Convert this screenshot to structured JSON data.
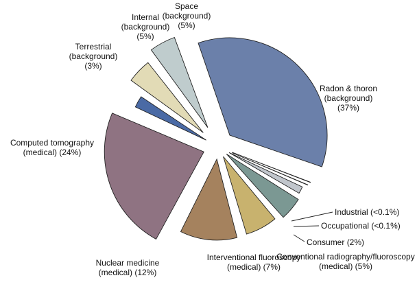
{
  "chart_data": {
    "type": "pie",
    "title": "",
    "exploded": true,
    "slices": [
      {
        "name": "Radon & thoron (background)",
        "value": 37,
        "color": "#6b80aa",
        "label_lines": [
          "Radon & thoron",
          "(background)",
          "(37%)"
        ]
      },
      {
        "name": "Industrial",
        "value": 0.1,
        "color": "#e9e9e9",
        "label_lines": [
          "Industrial (<0.1%)"
        ]
      },
      {
        "name": "Occupational",
        "value": 0.1,
        "color": "#dcdcdc",
        "label_lines": [
          "Occupational (<0.1%)"
        ]
      },
      {
        "name": "Consumer",
        "value": 2,
        "color": "#c1c6cc",
        "label_lines": [
          "Consumer (2%)"
        ]
      },
      {
        "name": "Conventional radiography/fluoroscopy (medical)",
        "value": 5,
        "color": "#7b9893",
        "label_lines": [
          "Conventional radiography/fluoroscopy",
          "(medical) (5%)"
        ]
      },
      {
        "name": "Interventional fluoroscopy (medical)",
        "value": 7,
        "color": "#c8b26e",
        "label_lines": [
          "Interventional fluoroscopy",
          "(medical) (7%)"
        ]
      },
      {
        "name": "Nuclear medicine (medical)",
        "value": 12,
        "color": "#a5825e",
        "label_lines": [
          "Nuclear medicine",
          "(medical) (12%)"
        ]
      },
      {
        "name": "Computed tomography (medical)",
        "value": 24,
        "color": "#8f7382",
        "label_lines": [
          "Computed tomography",
          "(medical) (24%)"
        ]
      },
      {
        "name": "Terrestrial (background)",
        "value": 3,
        "color": "#4a6aa5",
        "label_lines": [
          "Terrestrial",
          "(background)",
          "(3%)"
        ]
      },
      {
        "name": "Internal (background)",
        "value": 5,
        "color": "#e2dbb6",
        "label_lines": [
          "Internal",
          "(background)",
          "(5%)"
        ]
      },
      {
        "name": "Space (background)",
        "value": 5,
        "color": "#bfcccd",
        "label_lines": [
          "Space",
          "(background)",
          "(5%)"
        ]
      }
    ]
  }
}
